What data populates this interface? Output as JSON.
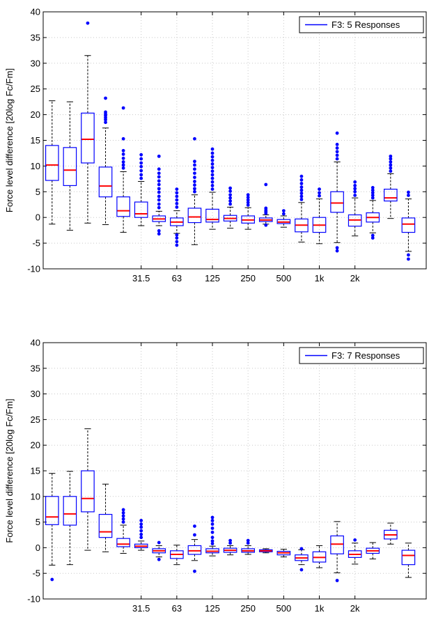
{
  "chart_data": [
    {
      "type": "box",
      "ylabel": "Force level difference [20log Fc/Fm]",
      "ylim": [
        -10,
        40
      ],
      "yticks": [
        "-10",
        "-5",
        "0",
        "5",
        "10",
        "15",
        "20",
        "25",
        "30",
        "35",
        "40"
      ],
      "xtick_labels": [
        "31.5",
        "63",
        "125",
        "250",
        "500",
        "1k",
        "2k"
      ],
      "grid": true,
      "legend": "F3: 5 Responses",
      "legend_position": "top-right",
      "box_color": "#0000ff",
      "median_color": "#ff0000",
      "whisker_color": "#000000",
      "outlier_color": "#0000ff",
      "boxes": [
        {
          "q1": 7.2,
          "median": 10.2,
          "q3": 14.0,
          "whisker_low": -1.3,
          "whisker_high": 22.7,
          "outliers": []
        },
        {
          "q1": 6.2,
          "median": 9.2,
          "q3": 13.6,
          "whisker_low": -2.5,
          "whisker_high": 22.5,
          "outliers": []
        },
        {
          "q1": 10.6,
          "median": 15.2,
          "q3": 20.3,
          "whisker_low": -1.1,
          "whisker_high": 31.5,
          "outliers": [
            37.8
          ]
        },
        {
          "q1": 4.0,
          "median": 6.1,
          "q3": 9.8,
          "whisker_low": -1.4,
          "whisker_high": 17.4,
          "outliers": [
            18.5,
            19.0,
            19.4,
            19.8,
            20.1,
            20.5,
            23.2
          ]
        },
        {
          "q1": 0.2,
          "median": 1.3,
          "q3": 4.0,
          "whisker_low": -2.9,
          "whisker_high": 8.9,
          "outliers": [
            9.6,
            10.2,
            10.8,
            11.5,
            12.3,
            13.0,
            15.3,
            21.3
          ]
        },
        {
          "q1": 0.0,
          "median": 0.7,
          "q3": 3.0,
          "whisker_low": -1.6,
          "whisker_high": 7.0,
          "outliers": [
            7.6,
            8.3,
            9.1,
            9.9,
            10.6,
            11.4,
            12.2
          ]
        },
        {
          "q1": -0.8,
          "median": -0.3,
          "q3": 0.3,
          "whisker_low": -1.6,
          "whisker_high": 1.2,
          "outliers": [
            -3.2,
            -2.6,
            1.9,
            2.6,
            3.4,
            4.1,
            4.9,
            5.6,
            6.4,
            7.1,
            7.9,
            8.6,
            9.4,
            11.9
          ]
        },
        {
          "q1": -1.6,
          "median": -0.9,
          "q3": -0.1,
          "whisker_low": -3.1,
          "whisker_high": 1.3,
          "outliers": [
            -5.4,
            -4.7,
            -4.0,
            -3.4,
            2.0,
            2.7,
            3.4,
            4.1,
            4.8,
            5.5
          ]
        },
        {
          "q1": -1.0,
          "median": 0.1,
          "q3": 1.8,
          "whisker_low": -5.3,
          "whisker_high": 4.4,
          "outliers": [
            5.0,
            5.6,
            6.3,
            7.0,
            7.8,
            8.6,
            9.4,
            10.2,
            10.9,
            15.3
          ]
        },
        {
          "q1": -0.9,
          "median": -0.4,
          "q3": 1.6,
          "whisker_low": -2.3,
          "whisker_high": 4.9,
          "outliers": [
            5.5,
            6.2,
            6.9,
            7.6,
            8.3,
            9.0,
            9.7,
            10.4,
            11.1,
            11.8,
            12.5,
            13.3
          ]
        },
        {
          "q1": -0.7,
          "median": -0.2,
          "q3": 0.4,
          "whisker_low": -2.1,
          "whisker_high": 2.0,
          "outliers": [
            2.6,
            3.2,
            3.8,
            4.4,
            5.1,
            5.7
          ]
        },
        {
          "q1": -1.1,
          "median": -0.5,
          "q3": 0.3,
          "whisker_low": -2.3,
          "whisker_high": 1.9,
          "outliers": [
            2.4,
            2.9,
            3.4,
            3.9,
            4.4
          ]
        },
        {
          "q1": -0.8,
          "median": -0.5,
          "q3": -0.1,
          "whisker_low": -1.3,
          "whisker_high": 0.5,
          "outliers": [
            -1.5,
            0.8,
            1.1,
            1.4,
            1.8,
            6.4
          ]
        },
        {
          "q1": -1.2,
          "median": -0.9,
          "q3": -0.4,
          "whisker_low": -1.9,
          "whisker_high": 0.3,
          "outliers": [
            0.7,
            1.3
          ]
        },
        {
          "q1": -2.8,
          "median": -1.5,
          "q3": -0.3,
          "whisker_low": -4.8,
          "whisker_high": 2.9,
          "outliers": [
            3.5,
            4.1,
            4.7,
            5.3,
            5.9,
            6.6,
            7.3,
            8.0
          ]
        },
        {
          "q1": -2.9,
          "median": -1.5,
          "q3": 0.0,
          "whisker_low": -5.1,
          "whisker_high": 3.6,
          "outliers": [
            4.2,
            4.8,
            5.5
          ]
        },
        {
          "q1": 1.0,
          "median": 2.8,
          "q3": 5.0,
          "whisker_low": -4.9,
          "whisker_high": 10.8,
          "outliers": [
            -6.5,
            -5.9,
            11.4,
            12.1,
            12.8,
            13.5,
            14.2,
            16.4
          ]
        },
        {
          "q1": -1.7,
          "median": -0.5,
          "q3": 0.5,
          "whisker_low": -3.6,
          "whisker_high": 3.8,
          "outliers": [
            4.3,
            5.0,
            5.6,
            6.2,
            6.9
          ]
        },
        {
          "q1": -0.9,
          "median": 0.0,
          "q3": 0.9,
          "whisker_low": -3.0,
          "whisker_high": 3.3,
          "outliers": [
            -4.0,
            -3.5,
            3.8,
            4.3,
            4.8,
            5.3,
            5.8
          ]
        },
        {
          "q1": 3.2,
          "median": 3.8,
          "q3": 5.5,
          "whisker_low": -0.2,
          "whisker_high": 8.5,
          "outliers": [
            9.0,
            9.6,
            10.2,
            10.8,
            11.4,
            11.9
          ]
        },
        {
          "q1": -2.9,
          "median": -1.3,
          "q3": -0.1,
          "whisker_low": -6.6,
          "whisker_high": 3.6,
          "outliers": [
            -8.1,
            -7.3,
            4.3,
            4.9
          ]
        }
      ]
    },
    {
      "type": "box",
      "ylabel": "Force level difference [20log Fc/Fm]",
      "ylim": [
        -10,
        40
      ],
      "yticks": [
        "-10",
        "-5",
        "0",
        "5",
        "10",
        "15",
        "20",
        "25",
        "30",
        "35",
        "40"
      ],
      "xtick_labels": [
        "31.5",
        "63",
        "125",
        "250",
        "500",
        "1k",
        "2k"
      ],
      "grid": true,
      "legend": "F3: 7 Responses",
      "legend_position": "top-right",
      "box_color": "#0000ff",
      "median_color": "#ff0000",
      "whisker_color": "#000000",
      "outlier_color": "#0000ff",
      "boxes": [
        {
          "q1": 4.5,
          "median": 6.0,
          "q3": 10.0,
          "whisker_low": -3.4,
          "whisker_high": 14.5,
          "outliers": [
            -6.2
          ]
        },
        {
          "q1": 4.4,
          "median": 6.6,
          "q3": 10.0,
          "whisker_low": -3.3,
          "whisker_high": 14.9,
          "outliers": []
        },
        {
          "q1": 7.0,
          "median": 9.6,
          "q3": 15.0,
          "whisker_low": -0.5,
          "whisker_high": 23.2,
          "outliers": []
        },
        {
          "q1": 2.0,
          "median": 3.1,
          "q3": 6.5,
          "whisker_low": -0.8,
          "whisker_high": 12.4,
          "outliers": []
        },
        {
          "q1": 0.2,
          "median": 0.7,
          "q3": 1.8,
          "whisker_low": -1.1,
          "whisker_high": 4.4,
          "outliers": [
            5.0,
            5.6,
            6.2,
            6.8,
            7.4
          ]
        },
        {
          "q1": 0.0,
          "median": 0.3,
          "q3": 0.7,
          "whisker_low": -0.5,
          "whisker_high": 1.3,
          "outliers": [
            2.0,
            2.6,
            3.3,
            4.0,
            4.6,
            5.3
          ]
        },
        {
          "q1": -1.0,
          "median": -0.6,
          "q3": -0.2,
          "whisker_low": -1.8,
          "whisker_high": 0.4,
          "outliers": [
            -2.3,
            1.0
          ]
        },
        {
          "q1": -2.1,
          "median": -1.3,
          "q3": -0.6,
          "whisker_low": -3.3,
          "whisker_high": 0.5,
          "outliers": []
        },
        {
          "q1": -1.3,
          "median": -0.6,
          "q3": 0.4,
          "whisker_low": -2.5,
          "whisker_high": 1.6,
          "outliers": [
            -4.6,
            2.5,
            4.2
          ]
        },
        {
          "q1": -1.0,
          "median": -0.7,
          "q3": -0.2,
          "whisker_low": -1.6,
          "whisker_high": 0.3,
          "outliers": [
            0.8,
            1.3,
            2.0,
            3.0,
            3.8,
            4.6,
            5.3,
            5.9
          ]
        },
        {
          "q1": -0.9,
          "median": -0.5,
          "q3": -0.1,
          "whisker_low": -1.4,
          "whisker_high": 0.4,
          "outliers": [
            0.9,
            1.4
          ]
        },
        {
          "q1": -0.9,
          "median": -0.6,
          "q3": -0.2,
          "whisker_low": -1.3,
          "whisker_high": 0.4,
          "outliers": [
            0.9,
            1.4
          ]
        },
        {
          "q1": -0.8,
          "median": -0.6,
          "q3": -0.4,
          "whisker_low": -1.0,
          "whisker_high": -0.2,
          "outliers": []
        },
        {
          "q1": -1.4,
          "median": -1.0,
          "q3": -0.7,
          "whisker_low": -1.8,
          "whisker_high": -0.3,
          "outliers": []
        },
        {
          "q1": -2.5,
          "median": -2.0,
          "q3": -1.4,
          "whisker_low": -3.3,
          "whisker_high": -0.4,
          "outliers": [
            -4.3,
            -0.2
          ]
        },
        {
          "q1": -2.8,
          "median": -1.9,
          "q3": -0.8,
          "whisker_low": -3.9,
          "whisker_high": 0.4,
          "outliers": []
        },
        {
          "q1": -1.2,
          "median": 0.7,
          "q3": 2.3,
          "whisker_low": -4.9,
          "whisker_high": 5.1,
          "outliers": [
            -6.4
          ]
        },
        {
          "q1": -1.9,
          "median": -1.3,
          "q3": -0.6,
          "whisker_low": -3.2,
          "whisker_high": 0.9,
          "outliers": [
            1.5
          ]
        },
        {
          "q1": -1.1,
          "median": -0.6,
          "q3": -0.1,
          "whisker_low": -2.2,
          "whisker_high": 1.0,
          "outliers": []
        },
        {
          "q1": 1.7,
          "median": 2.5,
          "q3": 3.4,
          "whisker_low": 0.7,
          "whisker_high": 4.8,
          "outliers": []
        },
        {
          "q1": -3.3,
          "median": -1.5,
          "q3": -0.5,
          "whisker_low": -5.8,
          "whisker_high": 0.9,
          "outliers": []
        }
      ]
    }
  ]
}
